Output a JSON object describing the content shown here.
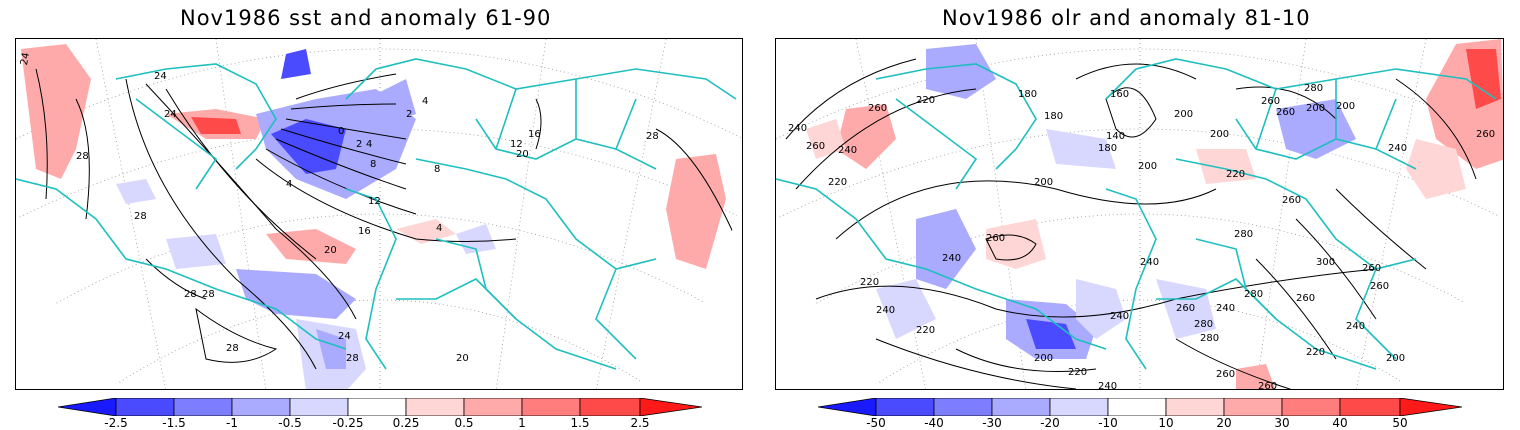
{
  "panels": [
    {
      "title": "Nov1986 sst and anomaly 61-90",
      "contour_labels": [
        "24",
        "28",
        "0",
        "4",
        "2",
        "4",
        "2",
        "4",
        "8",
        "8",
        "12",
        "16",
        "20",
        "16",
        "12",
        "4",
        "28",
        "20",
        "24",
        "28",
        "28",
        "28",
        "28",
        "28",
        "24",
        "20"
      ]
    },
    {
      "title": "Nov1986 olr and anomaly 81-10",
      "contour_labels": [
        "220",
        "180",
        "160",
        "260",
        "200",
        "200",
        "280",
        "260",
        "200",
        "180",
        "140",
        "180",
        "240",
        "260",
        "240",
        "200",
        "220",
        "200",
        "260",
        "220",
        "260",
        "240",
        "200",
        "260",
        "280",
        "220",
        "240",
        "240",
        "300",
        "260",
        "260",
        "240",
        "220",
        "240",
        "260",
        "280",
        "240",
        "280",
        "260",
        "260",
        "280",
        "240",
        "200",
        "220",
        "260",
        "200",
        "220",
        "240",
        "260"
      ]
    }
  ],
  "colorbars": [
    {
      "labels": [
        "-2.5",
        "-1.5",
        "-1",
        "-0.5",
        "-0.25",
        "0.25",
        "0.5",
        "1",
        "1.5",
        "2.5"
      ]
    },
    {
      "labels": [
        "-50",
        "-40",
        "-30",
        "-20",
        "-10",
        "10",
        "20",
        "30",
        "40",
        "50"
      ]
    }
  ],
  "colors": {
    "coast": "#1fbfbf",
    "neg": [
      "#1a1aff",
      "#4a4aff",
      "#7d7dff",
      "#aaaaff",
      "#d8d8ff"
    ],
    "pos": [
      "#ffd6d6",
      "#ffaaaa",
      "#ff7d7d",
      "#ff4a4a",
      "#ff1a1a"
    ]
  }
}
